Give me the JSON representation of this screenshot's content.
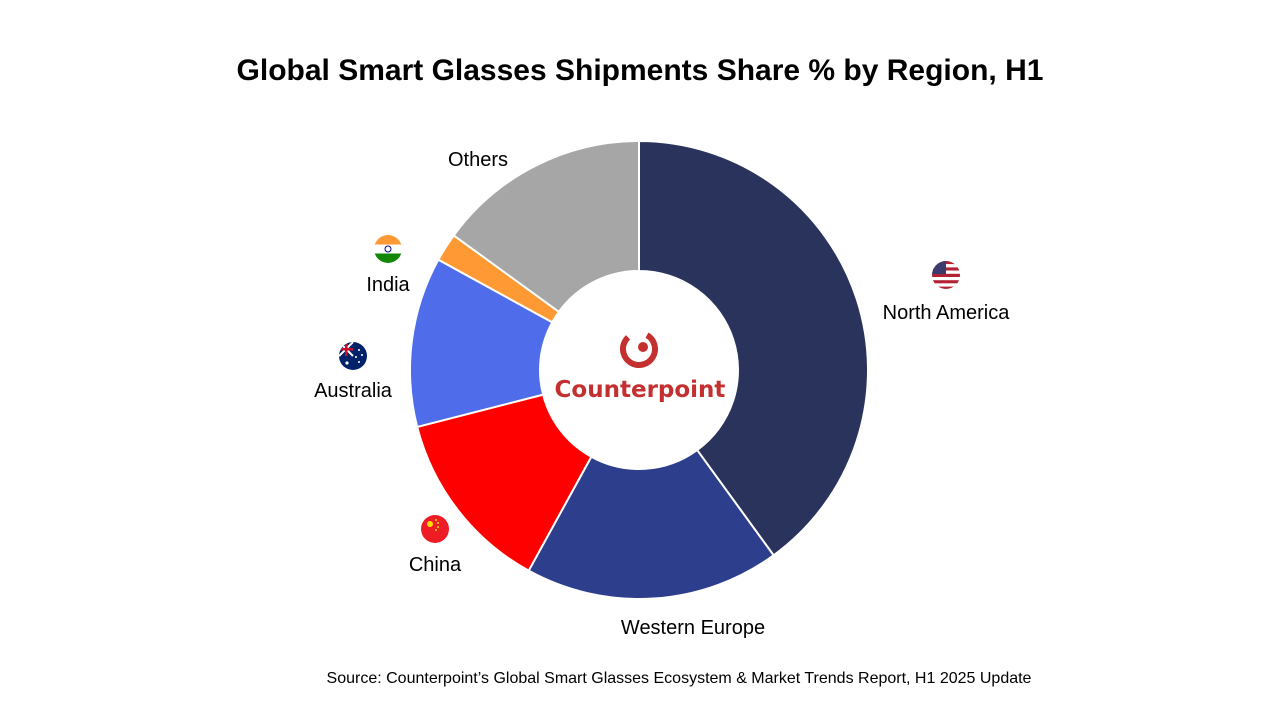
{
  "chart_data": {
    "type": "pie",
    "title": "Global Smart Glasses Shipments Share % by Region, H1",
    "categories": [
      "North America",
      "Western Europe",
      "China",
      "Australia",
      "India",
      "Others"
    ],
    "values": [
      40,
      18,
      13,
      12,
      2,
      15
    ],
    "colors": [
      "#29335C",
      "#2C3E8C",
      "#FF0000",
      "#4F6DEB",
      "#FF9933",
      "#A6A6A6"
    ],
    "flag_icons": [
      "us-flag-icon",
      "",
      "china-flag-icon",
      "australia-flag-icon",
      "india-flag-icon",
      ""
    ]
  },
  "center_logo": {
    "icon": "counterpoint-logo-icon",
    "text": "Counterpoint",
    "color": "#C3302F"
  },
  "source": "Source: Counterpoint’s Global Smart Glasses Ecosystem & Market Trends Report, H1 2025 Update"
}
